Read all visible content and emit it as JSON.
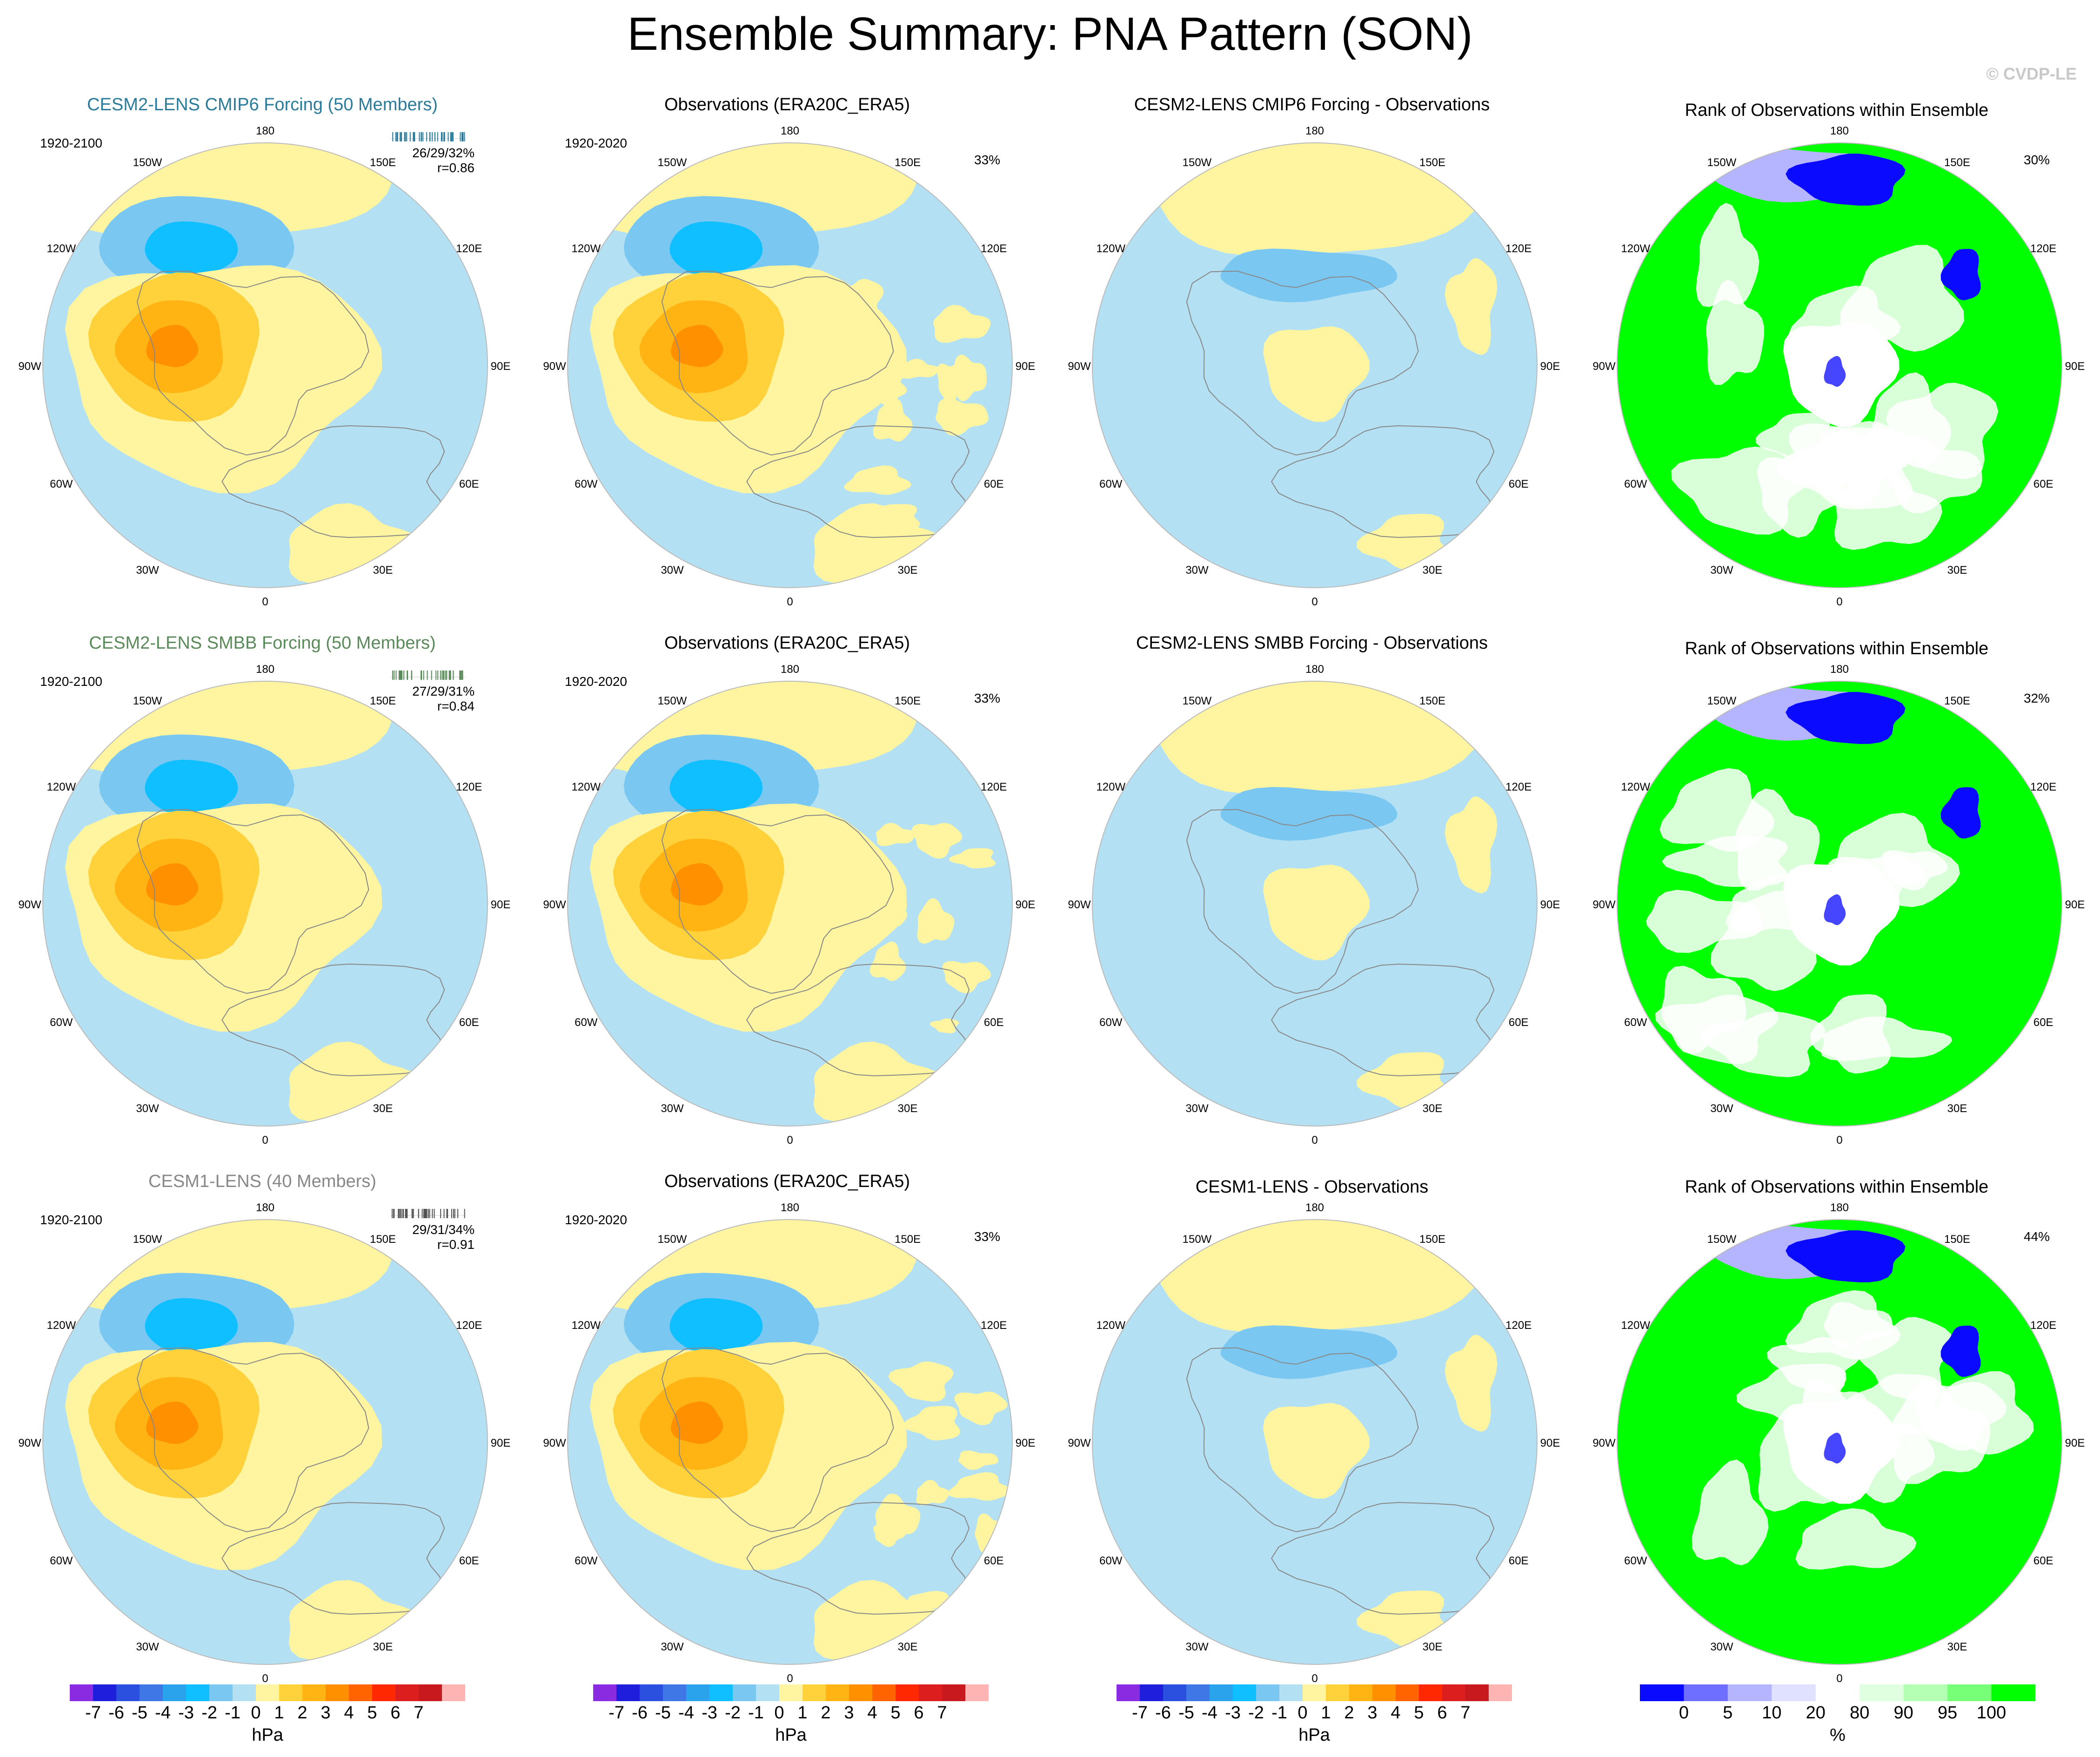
{
  "title": "Ensemble Summary: PNA Pattern (SON)",
  "watermark": "© CVDP-LE",
  "lon_labels": {
    "n": "180",
    "s": "0",
    "w90": "90W",
    "e90": "90E",
    "w120": "120W",
    "e120": "120E",
    "w150": "150W",
    "e150": "150E",
    "w60": "60W",
    "e60": "60E",
    "w30": "30W",
    "e30": "30E"
  },
  "rows": [
    {
      "model": {
        "title": "CESM2-LENS CMIP6 Forcing (50 Members)",
        "title_color": "#2a7a9a",
        "years": "1920-2100",
        "stat1": "26/29/32%",
        "stat2": "r=0.86",
        "tick_color": "#2a7a9a"
      },
      "obs": {
        "title": "Observations (ERA20C_ERA5)",
        "years": "1920-2020",
        "pct": "33%"
      },
      "diff": {
        "title": "CESM2-LENS CMIP6 Forcing - Observations"
      },
      "rank": {
        "title": "Rank of Observations within Ensemble",
        "pct": "30%"
      }
    },
    {
      "model": {
        "title": "CESM2-LENS SMBB Forcing (50 Members)",
        "title_color": "#5a8a5a",
        "years": "1920-2100",
        "stat1": "27/29/31%",
        "stat2": "r=0.84",
        "tick_color": "#5a8a5a"
      },
      "obs": {
        "title": "Observations (ERA20C_ERA5)",
        "years": "1920-2020",
        "pct": "33%"
      },
      "diff": {
        "title": "CESM2-LENS SMBB Forcing - Observations"
      },
      "rank": {
        "title": "Rank of Observations within Ensemble",
        "pct": "32%"
      }
    },
    {
      "model": {
        "title": "CESM1-LENS (40 Members)",
        "title_color": "#888888",
        "years": "1920-2100",
        "stat1": "29/31/34%",
        "stat2": "r=0.91",
        "tick_color": "#555555"
      },
      "obs": {
        "title": "Observations (ERA20C_ERA5)",
        "years": "1920-2020",
        "pct": "33%"
      },
      "diff": {
        "title": "CESM1-LENS - Observations"
      },
      "rank": {
        "title": "Rank of Observations within Ensemble",
        "pct": "44%"
      }
    }
  ],
  "colorbar_hpa": {
    "unit": "hPa",
    "ticks": [
      "-7",
      "-6",
      "-5",
      "-4",
      "-3",
      "-2",
      "-1",
      "0",
      "1",
      "2",
      "3",
      "4",
      "5",
      "6",
      "7"
    ],
    "colors": [
      "#8a2be2",
      "#1e1edc",
      "#2b50e0",
      "#3f78e6",
      "#2ba2ec",
      "#10bfff",
      "#7ac8f2",
      "#b3e0f2",
      "#fff5a0",
      "#ffd23c",
      "#ffb414",
      "#ff9100",
      "#ff6400",
      "#ff2800",
      "#dc1e1e",
      "#c8191e",
      "#ffb4b4"
    ]
  },
  "colorbar_rank": {
    "unit": "%",
    "ticks": [
      "0",
      "5",
      "10",
      "20",
      "80",
      "90",
      "95",
      "100"
    ],
    "colors": [
      "#0a0aff",
      "#6e6eff",
      "#b4b4ff",
      "#e0e0ff",
      "#ffffff",
      "#e0ffe0",
      "#b4ffb4",
      "#78ff78",
      "#00ff00"
    ]
  },
  "colors": {
    "ocean_bg": "#b3e0f2",
    "positive1": "#fff5a0",
    "positive2": "#ffd23c",
    "positive3": "#ffb414",
    "positive4": "#ff9100",
    "negative1": "#7ac8f2",
    "negative2": "#10bfff",
    "rank_green": "#00ff00",
    "rank_blue": "#0a0aff"
  }
}
